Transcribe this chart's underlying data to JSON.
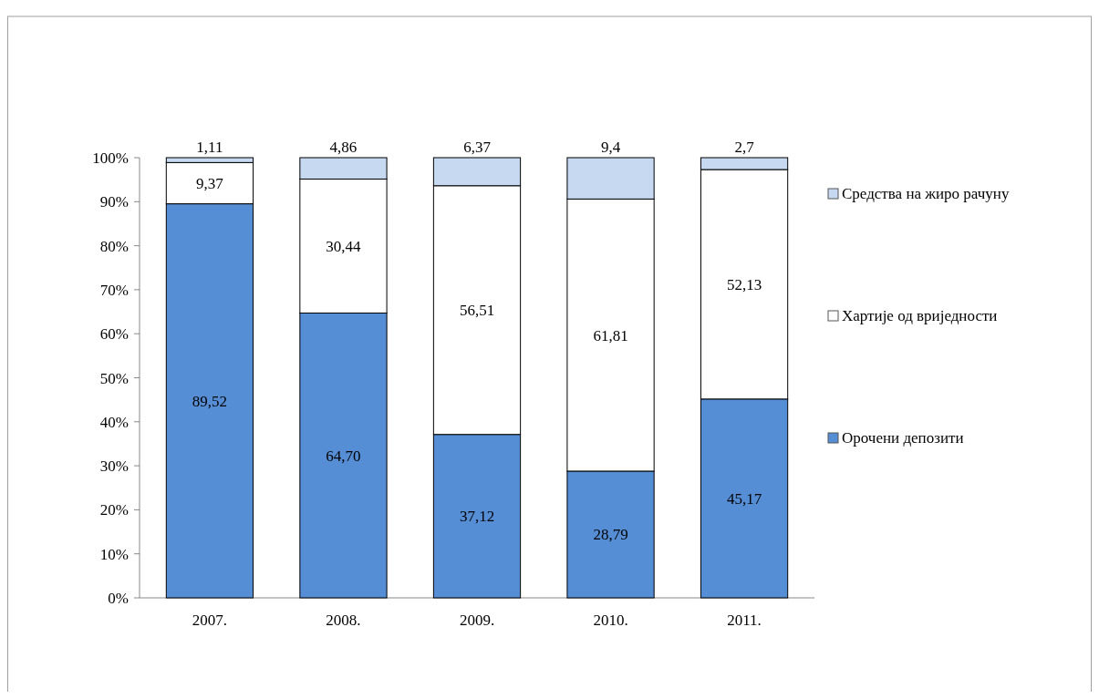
{
  "chart_data": {
    "type": "bar",
    "stacked": true,
    "categories": [
      "2007.",
      "2008.",
      "2009.",
      "2010.",
      "2011."
    ],
    "series": [
      {
        "name": "Орочени депозити",
        "color": "#558ed5",
        "values": [
          89.52,
          64.7,
          37.12,
          28.79,
          45.17
        ],
        "value_labels": [
          "89,52",
          "64,70",
          "37,12",
          "28,79",
          "45,17"
        ]
      },
      {
        "name": "Хартије од вриједности",
        "color": "#ffffff",
        "values": [
          9.37,
          30.44,
          56.51,
          61.81,
          52.13
        ],
        "value_labels": [
          "9,37",
          "30,44",
          "56,51",
          "61,81",
          "52,13"
        ]
      },
      {
        "name": "Средства на жиро рачуну",
        "color": "#c6d9f1",
        "values": [
          1.11,
          4.86,
          6.37,
          9.4,
          2.7
        ],
        "value_labels": [
          "1,11",
          "4,86",
          "6,37",
          "9,4",
          "2,7"
        ]
      }
    ],
    "ylim": [
      0,
      100
    ],
    "yticks": [
      {
        "value": 0,
        "label": "0%"
      },
      {
        "value": 10,
        "label": "10%"
      },
      {
        "value": 20,
        "label": "20%"
      },
      {
        "value": 30,
        "label": "30%"
      },
      {
        "value": 40,
        "label": "40%"
      },
      {
        "value": 50,
        "label": "50%"
      },
      {
        "value": 60,
        "label": "60%"
      },
      {
        "value": 70,
        "label": "70%"
      },
      {
        "value": 80,
        "label": "80%"
      },
      {
        "value": 90,
        "label": "90%"
      },
      {
        "value": 100,
        "label": "100%"
      }
    ],
    "legend": "right"
  }
}
